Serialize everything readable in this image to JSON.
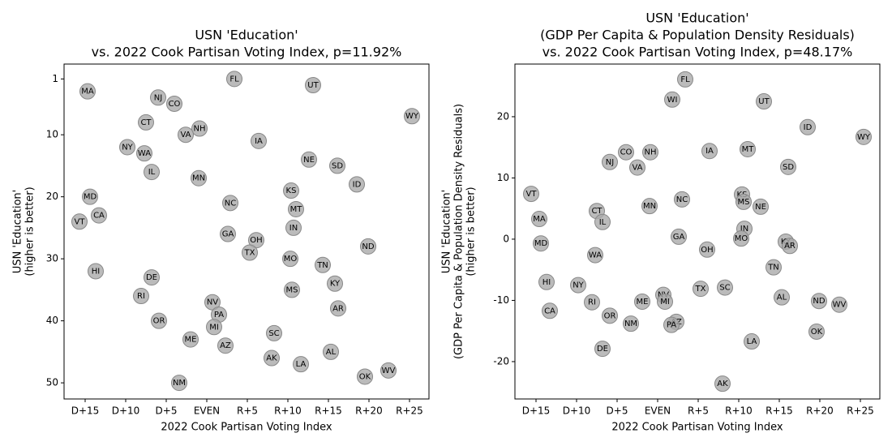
{
  "chart_data": [
    {
      "type": "scatter",
      "title": [
        "USN 'Education'",
        "vs. 2022 Cook Partisan Voting Index, p=11.92%"
      ],
      "xlabel": "2022 Cook Partisan Voting Index",
      "ylabel": [
        "USN 'Education'",
        "(higher is better)"
      ],
      "color": "#aaaaaa",
      "xlim": [
        -17.6,
        27.4
      ],
      "ylim": [
        52.6,
        -1.4
      ],
      "xticks": [
        {
          "value": -15,
          "label": "D+15"
        },
        {
          "value": -10,
          "label": "D+10"
        },
        {
          "value": -5,
          "label": "D+5"
        },
        {
          "value": 0,
          "label": "EVEN"
        },
        {
          "value": 5,
          "label": "R+5"
        },
        {
          "value": 10,
          "label": "R+10"
        },
        {
          "value": 15,
          "label": "R+15"
        },
        {
          "value": 20,
          "label": "R+20"
        },
        {
          "value": 25,
          "label": "R+25"
        }
      ],
      "yticks": [
        1,
        10,
        20,
        30,
        40,
        50
      ],
      "labels": [
        "MA",
        "NJ",
        "CO",
        "FL",
        "UT",
        "WY",
        "CT",
        "NH",
        "VA",
        "IA",
        "NY",
        "WA",
        "NE",
        "SD",
        "IL",
        "MN",
        "ID",
        "KS",
        "MD",
        "NC",
        "MT",
        "CA",
        "VT",
        "IN",
        "GA",
        "OH",
        "ND",
        "TX",
        "MO",
        "TN",
        "HI",
        "DE",
        "KY",
        "MS",
        "RI",
        "NV",
        "AR",
        "PA",
        "OR",
        "MI",
        "SC",
        "ME",
        "AZ",
        "AL",
        "AK",
        "LA",
        "WV",
        "OK",
        "NM"
      ],
      "x": [
        -14.7,
        -6.0,
        -4.0,
        3.4,
        13.1,
        25.3,
        -7.5,
        -0.9,
        -2.6,
        6.4,
        -9.8,
        -7.7,
        12.6,
        16.1,
        -6.8,
        -1.0,
        18.5,
        10.4,
        -14.4,
        2.9,
        11.0,
        -13.3,
        -15.7,
        10.7,
        2.6,
        6.1,
        19.9,
        5.3,
        10.3,
        14.3,
        -13.7,
        -6.8,
        15.8,
        10.5,
        -8.1,
        0.7,
        16.2,
        1.5,
        -5.9,
        0.9,
        8.3,
        -2.0,
        2.3,
        15.3,
        8.0,
        11.6,
        22.4,
        19.5,
        -3.4
      ],
      "y": [
        3,
        4,
        5,
        1,
        2,
        7,
        8,
        9,
        10,
        11,
        12,
        13,
        14,
        15,
        16,
        17,
        18,
        19,
        20,
        21,
        22,
        23,
        24,
        25,
        26,
        27,
        28,
        29,
        30,
        31,
        32,
        33,
        34,
        35,
        36,
        37,
        38,
        39,
        40,
        41,
        42,
        43,
        44,
        45,
        46,
        47,
        48,
        49,
        50
      ]
    },
    {
      "type": "scatter",
      "title": [
        "USN 'Education'",
        "(GDP Per Capita & Population Density Residuals)",
        "vs. 2022 Cook Partisan Voting Index, p=48.17%"
      ],
      "xlabel": "2022 Cook Partisan Voting Index",
      "ylabel": [
        "USN 'Education'",
        "(GDP Per Capita & Population Density Residuals)",
        "(higher is better)"
      ],
      "color": "#aaaaaa",
      "xlim": [
        -17.6,
        27.4
      ],
      "ylim": [
        -26.1,
        28.6
      ],
      "xticks": [
        {
          "value": -15,
          "label": "D+15"
        },
        {
          "value": -10,
          "label": "D+10"
        },
        {
          "value": -5,
          "label": "D+5"
        },
        {
          "value": 0,
          "label": "EVEN"
        },
        {
          "value": 5,
          "label": "R+5"
        },
        {
          "value": 10,
          "label": "R+10"
        },
        {
          "value": 15,
          "label": "R+15"
        },
        {
          "value": 20,
          "label": "R+20"
        },
        {
          "value": 25,
          "label": "R+25"
        }
      ],
      "yticks": [
        -20,
        -10,
        0,
        10,
        20
      ],
      "labels": [
        "FL",
        "WI",
        "UT",
        "ID",
        "WY",
        "MT",
        "CO",
        "NH",
        "IA",
        "NJ",
        "SD",
        "VA",
        "VT",
        "KS",
        "NC",
        "MS",
        "MN",
        "NE",
        "CT",
        "MA",
        "IL",
        "IN",
        "GA",
        "MO",
        "KY",
        "MD",
        "AR",
        "OH",
        "WA",
        "TN",
        "HI",
        "NY",
        "TX",
        "SC",
        "NV",
        "AL",
        "ND",
        "RI",
        "MI",
        "ME",
        "WV",
        "CA",
        "OR",
        "AZ",
        "NM",
        "PA",
        "OK",
        "LA",
        "DE",
        "AK"
      ],
      "x": [
        3.4,
        1.8,
        13.1,
        18.5,
        25.4,
        11.1,
        -3.9,
        -0.9,
        6.4,
        -5.9,
        16.1,
        -2.5,
        -15.6,
        10.4,
        3.0,
        10.6,
        -1.0,
        12.7,
        -7.5,
        -14.6,
        -6.8,
        10.7,
        2.6,
        10.3,
        15.8,
        -14.4,
        16.3,
        6.1,
        -7.7,
        14.3,
        -13.7,
        -9.8,
        5.3,
        8.3,
        0.7,
        15.3,
        19.9,
        -8.1,
        0.9,
        -1.9,
        22.4,
        -13.3,
        -5.9,
        2.3,
        -3.3,
        1.7,
        19.6,
        11.6,
        -6.8,
        8.0
      ],
      "y": [
        26.1,
        22.8,
        22.5,
        18.3,
        16.7,
        14.7,
        14.2,
        14.2,
        14.4,
        12.6,
        11.8,
        11.7,
        7.4,
        7.3,
        6.5,
        6.1,
        5.4,
        5.3,
        4.6,
        3.3,
        2.8,
        1.7,
        0.4,
        0.1,
        -0.4,
        -0.7,
        -1.1,
        -1.7,
        -2.6,
        -4.6,
        -7.0,
        -7.5,
        -8.1,
        -7.9,
        -9.1,
        -9.5,
        -10.1,
        -10.3,
        -10.2,
        -10.2,
        -10.7,
        -11.7,
        -12.5,
        -13.5,
        -13.8,
        -14.0,
        -15.1,
        -16.7,
        -17.9,
        -23.6
      ]
    }
  ]
}
